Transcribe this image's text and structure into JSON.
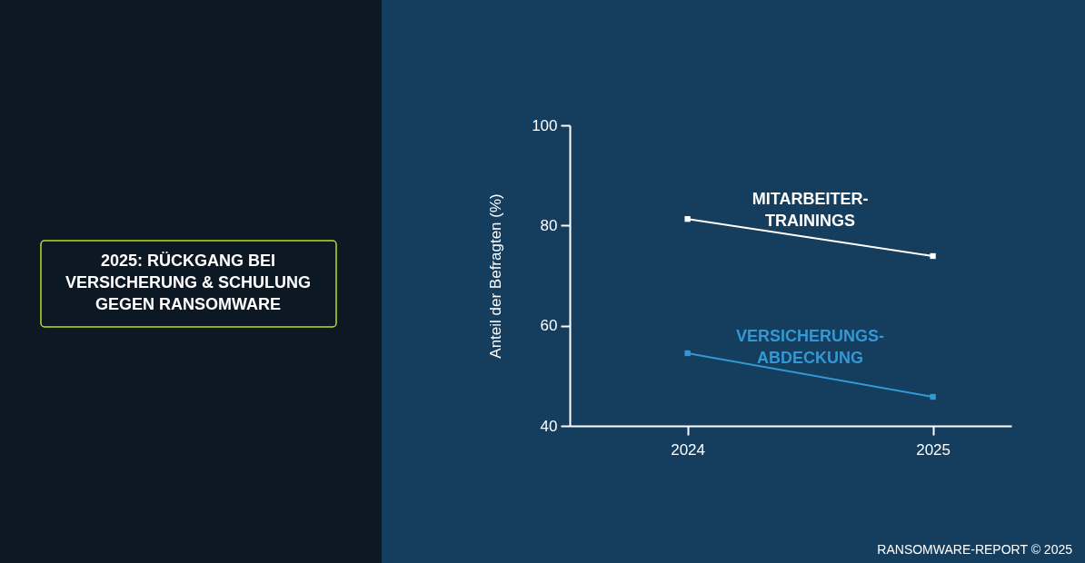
{
  "chart_data": {
    "type": "line",
    "title": "2025: RÜCKGANG BEI VERSICHERUNG & SCHULUNG GEGEN RANSOMWARE",
    "ylabel": "Anteil der Befragten (%)",
    "x": [
      2024,
      2025
    ],
    "xlim": [
      2023.52,
      2025.32
    ],
    "xticks": [
      2024,
      2025
    ],
    "ylim": [
      40,
      100
    ],
    "yticks": [
      40,
      60,
      80,
      100
    ],
    "series": [
      {
        "name": "MITARBEITER-TRAININGS",
        "color": "#ffffff",
        "values": [
          81.3,
          73.9
        ]
      },
      {
        "name": "VERSICHERUNGS-ABDECKUNG",
        "color": "#3399d6",
        "values": [
          54.5,
          45.8
        ]
      }
    ],
    "annotations": [
      "RANSOMWARE-REPORT © 2025"
    ],
    "marker": "square",
    "line_style": "solid",
    "legend": false,
    "grid": false
  }
}
